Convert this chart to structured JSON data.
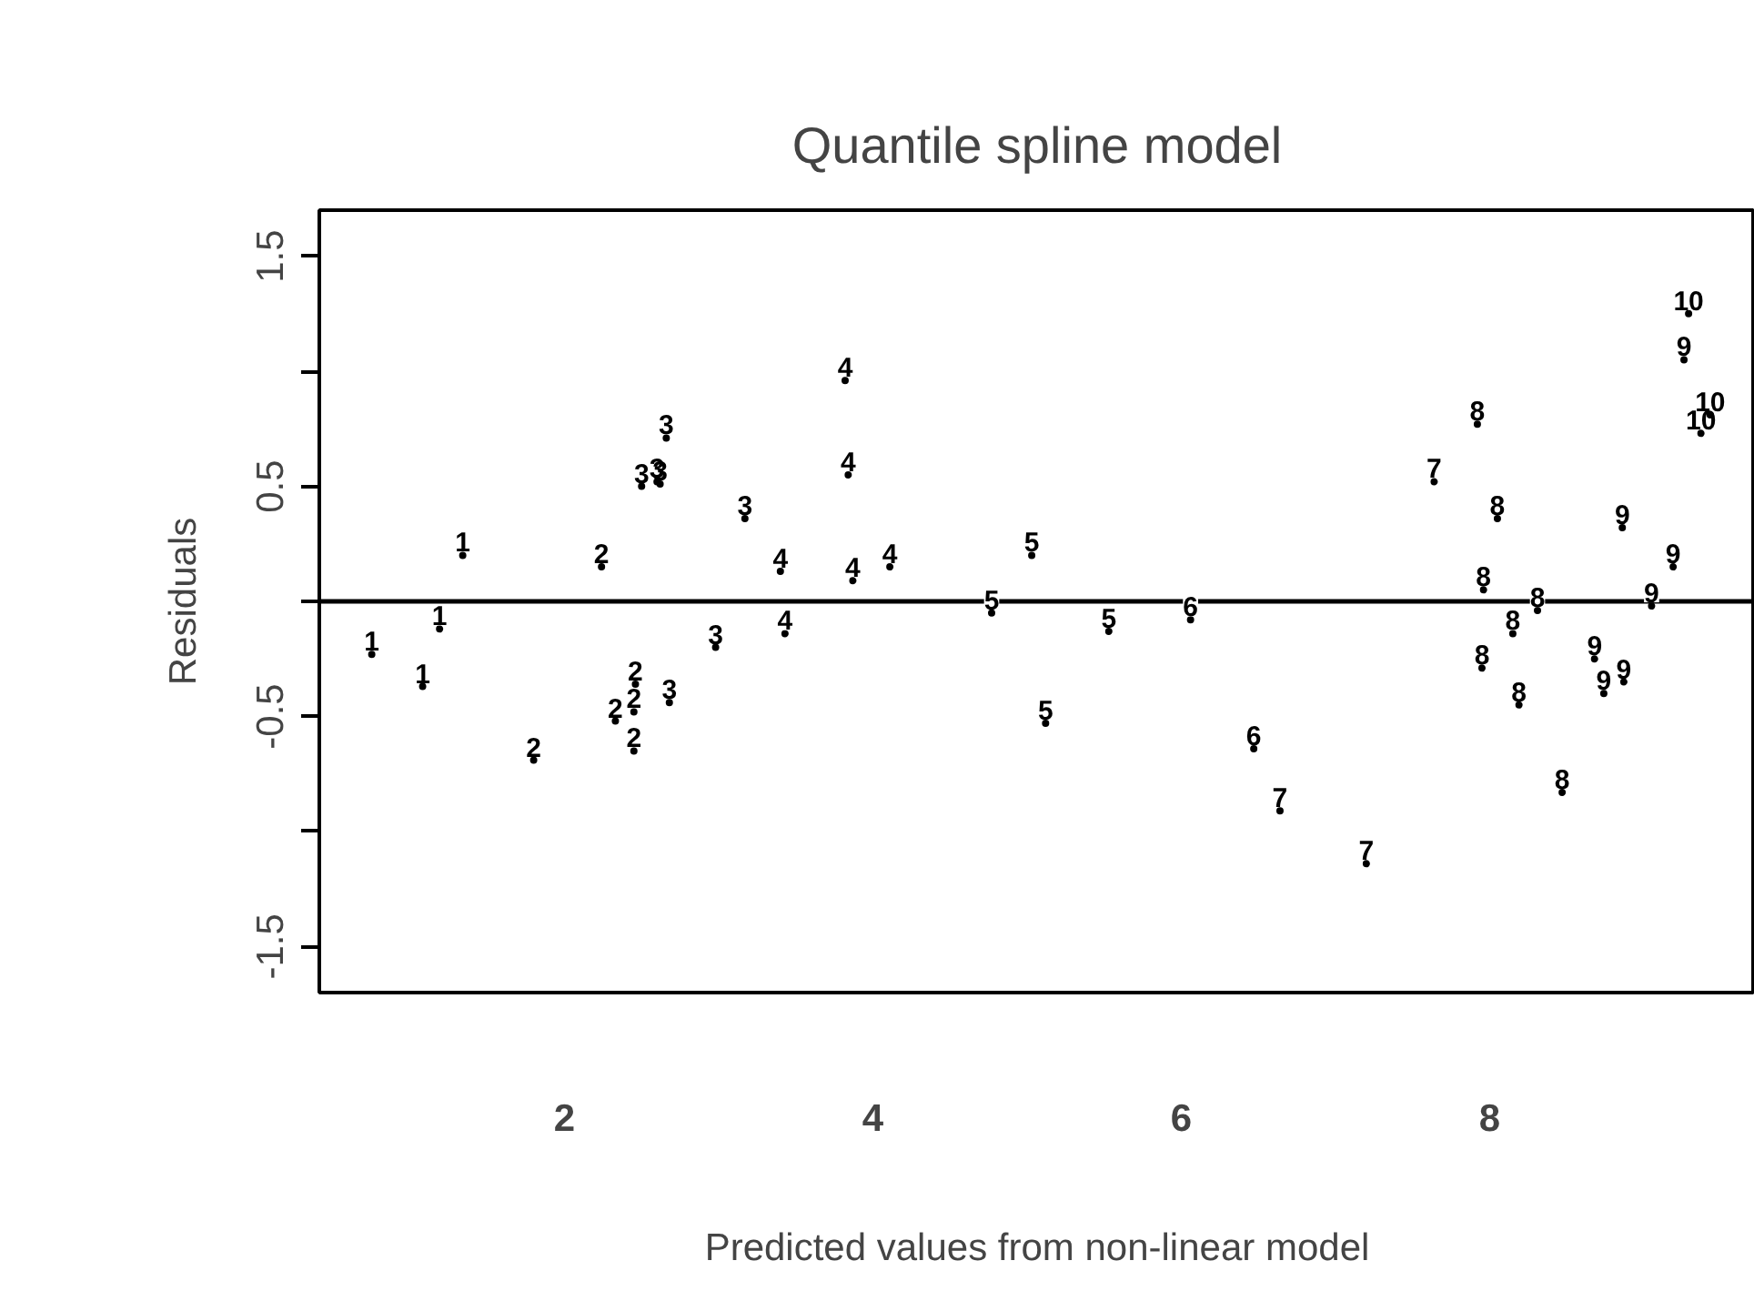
{
  "chart_data": {
    "type": "scatter",
    "title": "Quantile spline model",
    "xlabel": "Predicted values from non-linear model",
    "ylabel": "Residuals",
    "xlim": [
      0.41,
      9.72
    ],
    "ylim": [
      -1.7,
      1.7
    ],
    "xticks": [
      2,
      4,
      6,
      8
    ],
    "yticks": [
      {
        "value": -1.5,
        "label": "-1.5"
      },
      {
        "value": -1,
        "label": null
      },
      {
        "value": -0.5,
        "label": "-0.5"
      },
      {
        "value": 0,
        "label": null
      },
      {
        "value": 0.5,
        "label": "0.5"
      },
      {
        "value": 1,
        "label": null
      },
      {
        "value": 1.5,
        "label": "1.5"
      }
    ],
    "grid": false,
    "legend": false,
    "ref_lines": [
      {
        "axis": "y",
        "value": 0,
        "color": "#000000"
      }
    ],
    "series": [
      {
        "name": "1",
        "color": "#000000",
        "x": [
          1.34,
          1.19,
          0.75,
          1.08
        ],
        "values": [
          0.2,
          -0.12,
          -0.23,
          -0.37
        ]
      },
      {
        "name": "2",
        "color": "#000000",
        "x": [
          2.24,
          2.46,
          2.45,
          2.33,
          2.45,
          1.8
        ],
        "values": [
          0.15,
          -0.36,
          -0.48,
          -0.52,
          -0.65,
          -0.69
        ]
      },
      {
        "name": "3",
        "color": "#000000",
        "x": [
          2.66,
          2.5,
          2.62,
          2.6,
          3.17,
          2.98,
          2.68
        ],
        "values": [
          0.71,
          0.5,
          0.51,
          0.52,
          0.36,
          -0.2,
          -0.44
        ]
      },
      {
        "name": "4",
        "color": "#000000",
        "x": [
          3.82,
          3.84,
          3.4,
          3.87,
          4.11,
          3.43
        ],
        "values": [
          0.96,
          0.55,
          0.13,
          0.09,
          0.15,
          -0.14
        ]
      },
      {
        "name": "5",
        "color": "#000000",
        "x": [
          5.03,
          4.77,
          5.53,
          5.12
        ],
        "values": [
          0.2,
          -0.05,
          -0.13,
          -0.53
        ]
      },
      {
        "name": "6",
        "color": "#000000",
        "x": [
          6.06,
          6.47
        ],
        "values": [
          -0.08,
          -0.64
        ]
      },
      {
        "name": "7",
        "color": "#000000",
        "x": [
          6.64,
          7.2,
          7.64
        ],
        "values": [
          -0.91,
          -1.14,
          0.52
        ]
      },
      {
        "name": "8",
        "color": "#000000",
        "x": [
          7.92,
          8.05,
          7.96,
          8.31,
          8.15,
          7.95,
          8.19,
          8.47
        ],
        "values": [
          0.77,
          0.36,
          0.05,
          -0.04,
          -0.14,
          -0.29,
          -0.45,
          -0.83
        ]
      },
      {
        "name": "9",
        "color": "#000000",
        "x": [
          9.26,
          8.86,
          9.19,
          9.05,
          8.68,
          8.87,
          8.74
        ],
        "values": [
          1.05,
          0.32,
          0.15,
          -0.02,
          -0.25,
          -0.35,
          -0.4
        ]
      },
      {
        "name": "10",
        "color": "#000000",
        "x": [
          9.29,
          9.43,
          9.37
        ],
        "values": [
          1.25,
          0.81,
          0.73
        ]
      }
    ]
  }
}
